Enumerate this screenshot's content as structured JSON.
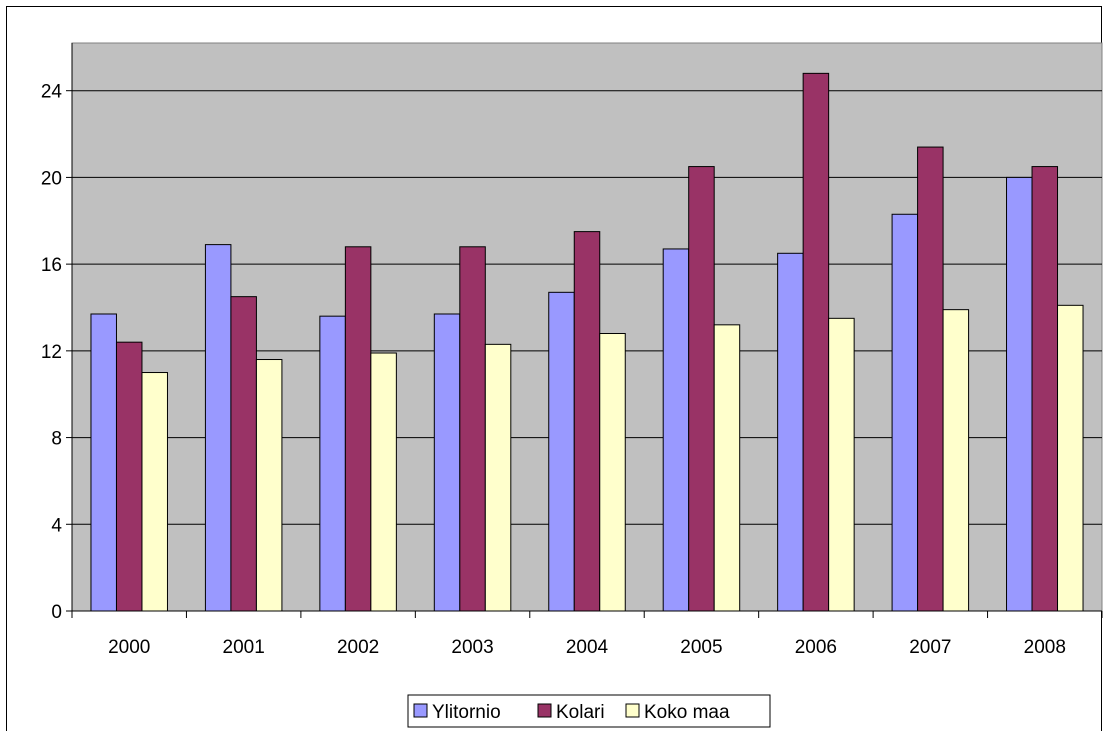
{
  "chart_data": {
    "type": "bar",
    "title": "",
    "xlabel": "",
    "ylabel": "",
    "categories": [
      "2000",
      "2001",
      "2002",
      "2003",
      "2004",
      "2005",
      "2006",
      "2007",
      "2008"
    ],
    "series": [
      {
        "name": "Ylitornio",
        "color": "#9999ff",
        "values": [
          13.7,
          16.9,
          13.6,
          13.7,
          14.7,
          16.7,
          16.5,
          18.3,
          20.0
        ]
      },
      {
        "name": "Kolari",
        "color": "#993366",
        "values": [
          12.4,
          14.5,
          16.8,
          16.8,
          17.5,
          20.5,
          24.8,
          21.4,
          20.5
        ]
      },
      {
        "name": "Koko maa",
        "color": "#ffffcc",
        "values": [
          11.0,
          11.6,
          11.9,
          12.3,
          12.8,
          13.2,
          13.5,
          13.9,
          14.1
        ]
      }
    ],
    "yticks": [
      "0",
      "4",
      "8",
      "12",
      "16",
      "20",
      "24"
    ],
    "ylim": [
      0,
      26.2
    ],
    "grid": true,
    "plot_background": "#c0c0c0",
    "legend_position": "bottom"
  }
}
